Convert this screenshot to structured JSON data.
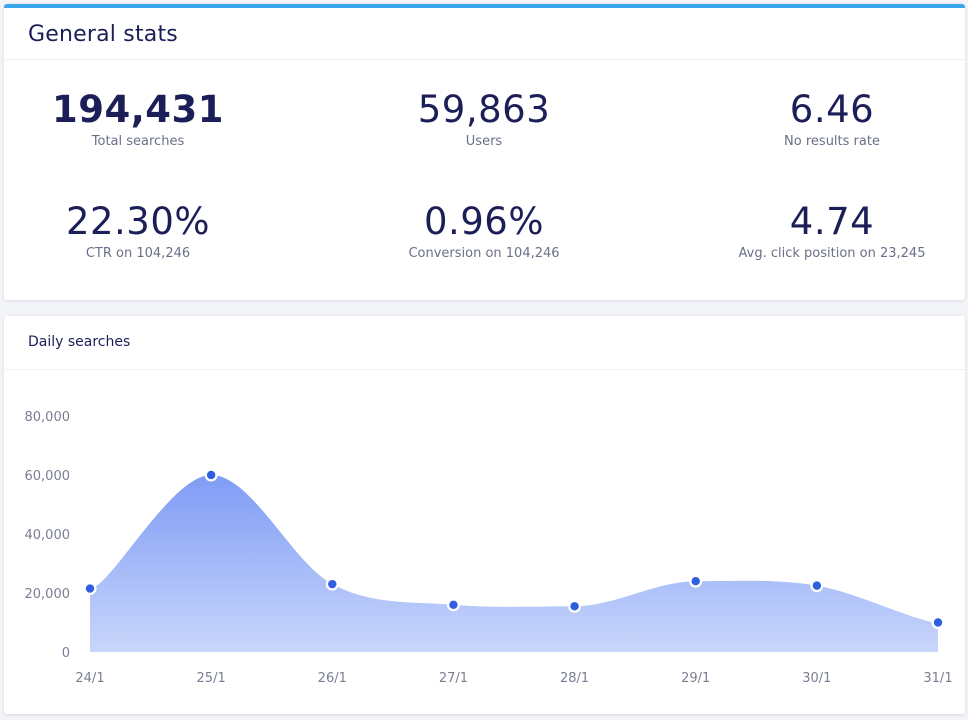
{
  "general_stats": {
    "title": "General stats",
    "stats": [
      {
        "value": "194,431",
        "label": "Total searches"
      },
      {
        "value": "59,863",
        "label": "Users"
      },
      {
        "value": "6.46",
        "label": "No results rate"
      },
      {
        "value": "22.30%",
        "label": "CTR on 104,246"
      },
      {
        "value": "0.96%",
        "label": "Conversion on 104,246"
      },
      {
        "value": "4.74",
        "label": "Avg. click position on 23,245"
      }
    ]
  },
  "daily_searches": {
    "title": "Daily searches"
  },
  "colors": {
    "accent_bar": "#3aa7ec",
    "area_top": "#7f9cf5",
    "area_bottom": "#c9d6fb",
    "point_fill": "#2f5fe0",
    "text_dark": "#1c1f57",
    "text_muted": "#6b6f87"
  },
  "chart_data": {
    "type": "area",
    "title": "Daily searches",
    "xlabel": "",
    "ylabel": "",
    "categories": [
      "24/1",
      "25/1",
      "26/1",
      "27/1",
      "28/1",
      "29/1",
      "30/1",
      "31/1"
    ],
    "series": [
      {
        "name": "Daily searches",
        "values": [
          21500,
          60000,
          23000,
          16000,
          15500,
          24000,
          22500,
          10000
        ]
      }
    ],
    "ylim": [
      0,
      80000
    ],
    "yticks": [
      0,
      20000,
      40000,
      60000,
      80000
    ],
    "ytick_labels": [
      "0",
      "20,000",
      "40,000",
      "60,000",
      "80,000"
    ],
    "grid": false,
    "legend": "none"
  }
}
